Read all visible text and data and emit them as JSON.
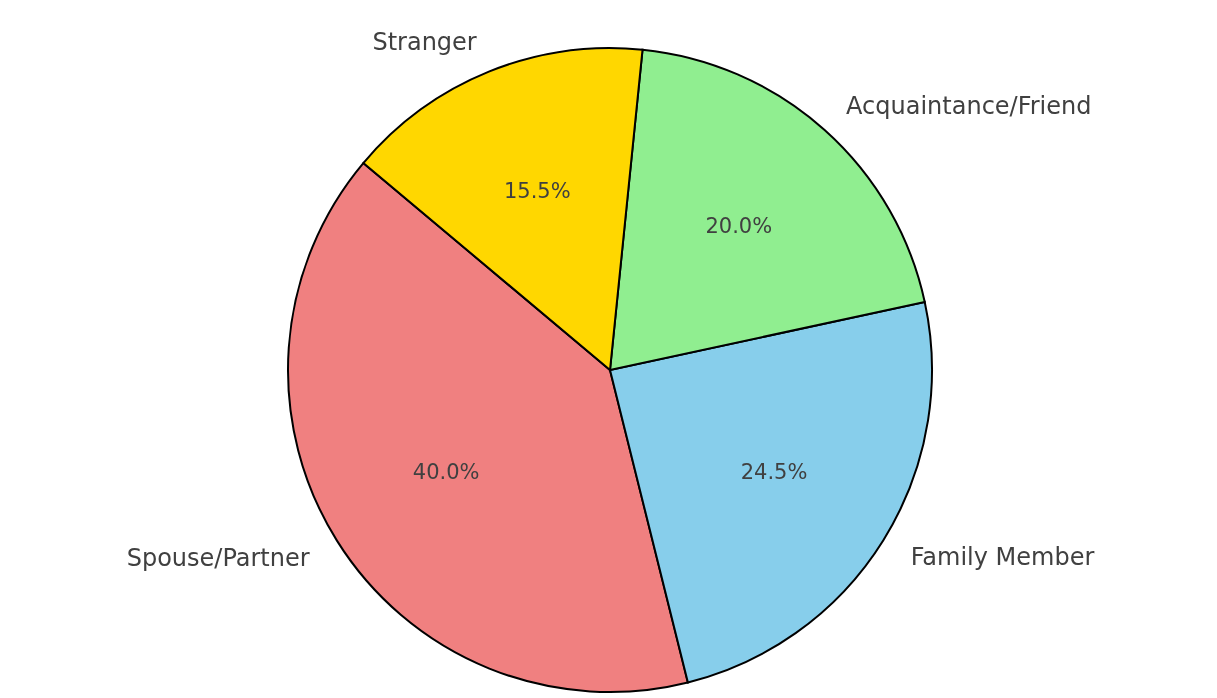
{
  "chart_data": {
    "type": "pie",
    "categories": [
      "Spouse/Partner",
      "Family Member",
      "Acquaintance/Friend",
      "Stranger"
    ],
    "values": [
      40.0,
      24.5,
      20.0,
      15.5
    ],
    "value_labels": [
      "40.0%",
      "24.5%",
      "20.0%",
      "15.5%"
    ],
    "colors": [
      "#f08080",
      "#87ceeb",
      "#90ee90",
      "#ffd700"
    ]
  }
}
